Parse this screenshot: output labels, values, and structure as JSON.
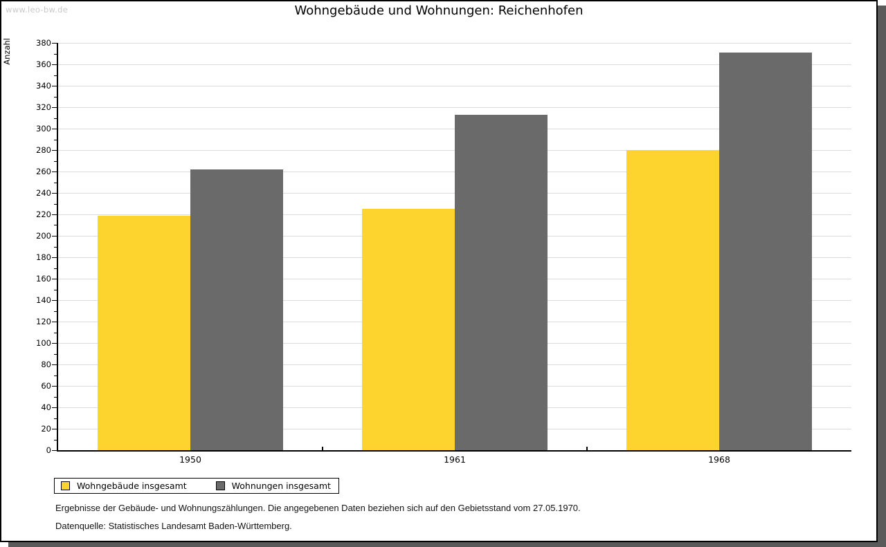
{
  "watermark": "www.leo-bw.de",
  "title": "Wohngebäude und Wohnungen: Reichenhofen",
  "chart_data": {
    "type": "bar",
    "title": "Wohngebäude und Wohnungen: Reichenhofen",
    "xlabel": "",
    "ylabel": "Anzahl",
    "categories": [
      "1950",
      "1961",
      "1968"
    ],
    "series": [
      {
        "name": "Wohngebäude insgesamt",
        "color": "#FDD32D",
        "values": [
          219,
          225,
          280
        ]
      },
      {
        "name": "Wohnungen insgesamt",
        "color": "#6A6A6A",
        "values": [
          262,
          313,
          371
        ]
      }
    ],
    "ylim": [
      0,
      380
    ],
    "ytick_step": 20,
    "minor_tick_step": 10,
    "grid": true,
    "gridline_color": "#DCDCDC",
    "axis_color": "#000000",
    "legend_position": "bottom-left"
  },
  "footnotes": {
    "line1": "Ergebnisse der Gebäude- und Wohnungszählungen. Die angegebenen Daten beziehen sich auf den Gebietsstand vom 27.05.1970.",
    "line2": "Datenquelle: Statistisches Landesamt Baden-Württemberg."
  }
}
